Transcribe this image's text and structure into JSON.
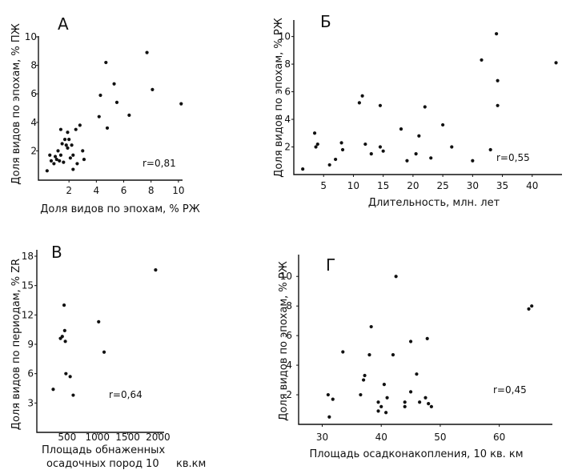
{
  "chart_data": [
    {
      "type": "scatter",
      "panel": "A",
      "annotation": "r=0,81",
      "xlabel": "Доля видов по эпохам, % РЖ",
      "ylabel": "Доля видов по эпохам, % ПЖ",
      "xlim": [
        0,
        10.3
      ],
      "ylim": [
        0,
        10
      ],
      "xticks": [
        2,
        4,
        6,
        8,
        10
      ],
      "yticks": [
        2,
        4,
        6,
        8,
        10
      ],
      "points": [
        [
          0.4,
          0.6
        ],
        [
          0.6,
          1.7
        ],
        [
          0.7,
          1.3
        ],
        [
          0.9,
          1.1
        ],
        [
          1.0,
          1.6
        ],
        [
          1.1,
          1.4
        ],
        [
          1.2,
          2.0
        ],
        [
          1.3,
          1.3
        ],
        [
          1.4,
          3.5
        ],
        [
          1.4,
          1.7
        ],
        [
          1.5,
          2.5
        ],
        [
          1.6,
          1.2
        ],
        [
          1.7,
          2.8
        ],
        [
          1.8,
          2.4
        ],
        [
          1.9,
          3.3
        ],
        [
          1.9,
          2.2
        ],
        [
          2.0,
          2.8
        ],
        [
          2.1,
          1.5
        ],
        [
          2.2,
          2.4
        ],
        [
          2.3,
          0.7
        ],
        [
          2.3,
          1.7
        ],
        [
          2.5,
          3.5
        ],
        [
          2.6,
          1.1
        ],
        [
          2.8,
          3.8
        ],
        [
          3.0,
          2.0
        ],
        [
          3.1,
          1.4
        ],
        [
          4.2,
          4.4
        ],
        [
          4.3,
          5.9
        ],
        [
          4.7,
          8.2
        ],
        [
          4.8,
          3.6
        ],
        [
          5.3,
          6.7
        ],
        [
          5.5,
          5.4
        ],
        [
          6.4,
          4.5
        ],
        [
          7.7,
          8.9
        ],
        [
          8.1,
          6.3
        ],
        [
          10.2,
          5.3
        ]
      ]
    },
    {
      "type": "scatter",
      "panel": "Б",
      "annotation": "r=0,55",
      "xlabel": "Длительность, млн. лет",
      "ylabel": "Доля видов по эпохам, % РЖ",
      "xlim": [
        0,
        45
      ],
      "ylim": [
        0,
        10.5
      ],
      "xticks": [
        5,
        10,
        15,
        20,
        25,
        30,
        35,
        40
      ],
      "yticks": [
        2,
        4,
        6,
        8,
        10
      ],
      "points": [
        [
          1.5,
          0.4
        ],
        [
          3.5,
          3.0
        ],
        [
          3.7,
          2.0
        ],
        [
          4.0,
          2.2
        ],
        [
          6.0,
          0.7
        ],
        [
          7.0,
          1.1
        ],
        [
          8.0,
          2.3
        ],
        [
          8.2,
          1.8
        ],
        [
          11.0,
          5.2
        ],
        [
          11.5,
          5.7
        ],
        [
          12.0,
          2.2
        ],
        [
          13.0,
          1.5
        ],
        [
          14.5,
          5.0
        ],
        [
          14.5,
          2.0
        ],
        [
          15.0,
          1.7
        ],
        [
          18.0,
          3.3
        ],
        [
          19.0,
          1.0
        ],
        [
          20.5,
          1.5
        ],
        [
          21.0,
          2.8
        ],
        [
          22.0,
          4.9
        ],
        [
          23.0,
          1.2
        ],
        [
          25.0,
          3.6
        ],
        [
          26.5,
          2.0
        ],
        [
          30.0,
          1.0
        ],
        [
          31.5,
          8.3
        ],
        [
          33.0,
          1.8
        ],
        [
          34.0,
          10.2
        ],
        [
          34.2,
          6.8
        ],
        [
          34.2,
          5.0
        ],
        [
          44.0,
          8.1
        ]
      ]
    },
    {
      "type": "scatter",
      "panel": "В",
      "annotation": "r=0,64",
      "xlabel": "Площадь обнаженных осадочных пород 10   кв.км",
      "xlabel_lines": [
        "Площадь обнаженных",
        "осадочных пород 10",
        "кв.км"
      ],
      "ylabel": "Доля видов по периодам, % ZR",
      "xlim": [
        0,
        2100
      ],
      "ylim": [
        0,
        18
      ],
      "xticks": [
        500,
        1000,
        1500,
        2000
      ],
      "yticks": [
        3,
        6,
        9,
        12,
        15,
        18
      ],
      "points": [
        [
          270,
          4.4
        ],
        [
          390,
          9.6
        ],
        [
          420,
          9.8
        ],
        [
          450,
          13.0
        ],
        [
          460,
          10.4
        ],
        [
          470,
          9.3
        ],
        [
          480,
          6.0
        ],
        [
          550,
          5.7
        ],
        [
          600,
          3.8
        ],
        [
          1020,
          11.3
        ],
        [
          1110,
          8.2
        ],
        [
          1960,
          16.6
        ]
      ]
    },
    {
      "type": "scatter",
      "panel": "Г",
      "annotation": "r=0,45",
      "xlabel": "Площадь осадконакопления, 10  кв. км",
      "ylabel": "Доля видов по эпохам, % РЖ",
      "xlim": [
        26,
        69
      ],
      "ylim": [
        0,
        10.5
      ],
      "xticks": [
        30,
        40,
        50,
        60
      ],
      "yticks": [
        2,
        4,
        6,
        8,
        10
      ],
      "points": [
        [
          31.0,
          2.0
        ],
        [
          31.2,
          0.5
        ],
        [
          31.8,
          1.7
        ],
        [
          33.5,
          4.9
        ],
        [
          36.5,
          2.0
        ],
        [
          37.0,
          3.0
        ],
        [
          37.2,
          3.3
        ],
        [
          38.0,
          4.7
        ],
        [
          38.3,
          6.6
        ],
        [
          39.5,
          1.5
        ],
        [
          39.5,
          0.9
        ],
        [
          40.0,
          1.2
        ],
        [
          40.5,
          2.7
        ],
        [
          40.8,
          0.8
        ],
        [
          41.0,
          1.8
        ],
        [
          42.0,
          4.7
        ],
        [
          42.5,
          10.0
        ],
        [
          44.0,
          1.2
        ],
        [
          44.0,
          1.5
        ],
        [
          45.0,
          5.6
        ],
        [
          45.0,
          2.2
        ],
        [
          46.0,
          3.4
        ],
        [
          46.5,
          1.5
        ],
        [
          47.5,
          1.8
        ],
        [
          47.8,
          5.8
        ],
        [
          48.0,
          1.4
        ],
        [
          48.5,
          1.2
        ],
        [
          65.0,
          7.8
        ],
        [
          65.5,
          8.0
        ]
      ]
    }
  ]
}
